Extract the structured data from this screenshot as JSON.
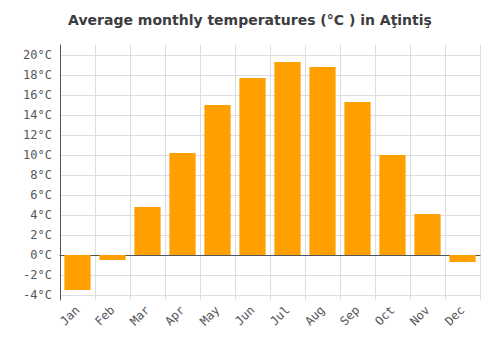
{
  "chart_data": {
    "type": "bar",
    "title": "Average monthly temperatures (°C ) in Aţintiş",
    "categories": [
      "Jan",
      "Feb",
      "Mar",
      "Apr",
      "May",
      "Jun",
      "Jul",
      "Aug",
      "Sep",
      "Oct",
      "Nov",
      "Dec"
    ],
    "values": [
      -3.5,
      -0.5,
      4.8,
      10.2,
      15.0,
      17.7,
      19.3,
      18.8,
      15.3,
      10.0,
      4.1,
      -0.7
    ],
    "color": "#FFA000",
    "ylim": [
      -4.5,
      21.0
    ],
    "yticks": [
      {
        "value": -4,
        "label": "-4°C"
      },
      {
        "value": -2,
        "label": "-2°C"
      },
      {
        "value": 0,
        "label": "0°C"
      },
      {
        "value": 2,
        "label": "2°C"
      },
      {
        "value": 4,
        "label": "4°C"
      },
      {
        "value": 6,
        "label": "6°C"
      },
      {
        "value": 8,
        "label": "8°C"
      },
      {
        "value": 10,
        "label": "10°C"
      },
      {
        "value": 12,
        "label": "12°C"
      },
      {
        "value": 14,
        "label": "14°C"
      },
      {
        "value": 16,
        "label": "16°C"
      },
      {
        "value": 18,
        "label": "18°C"
      },
      {
        "value": 20,
        "label": "20°C"
      }
    ],
    "grid": true
  }
}
